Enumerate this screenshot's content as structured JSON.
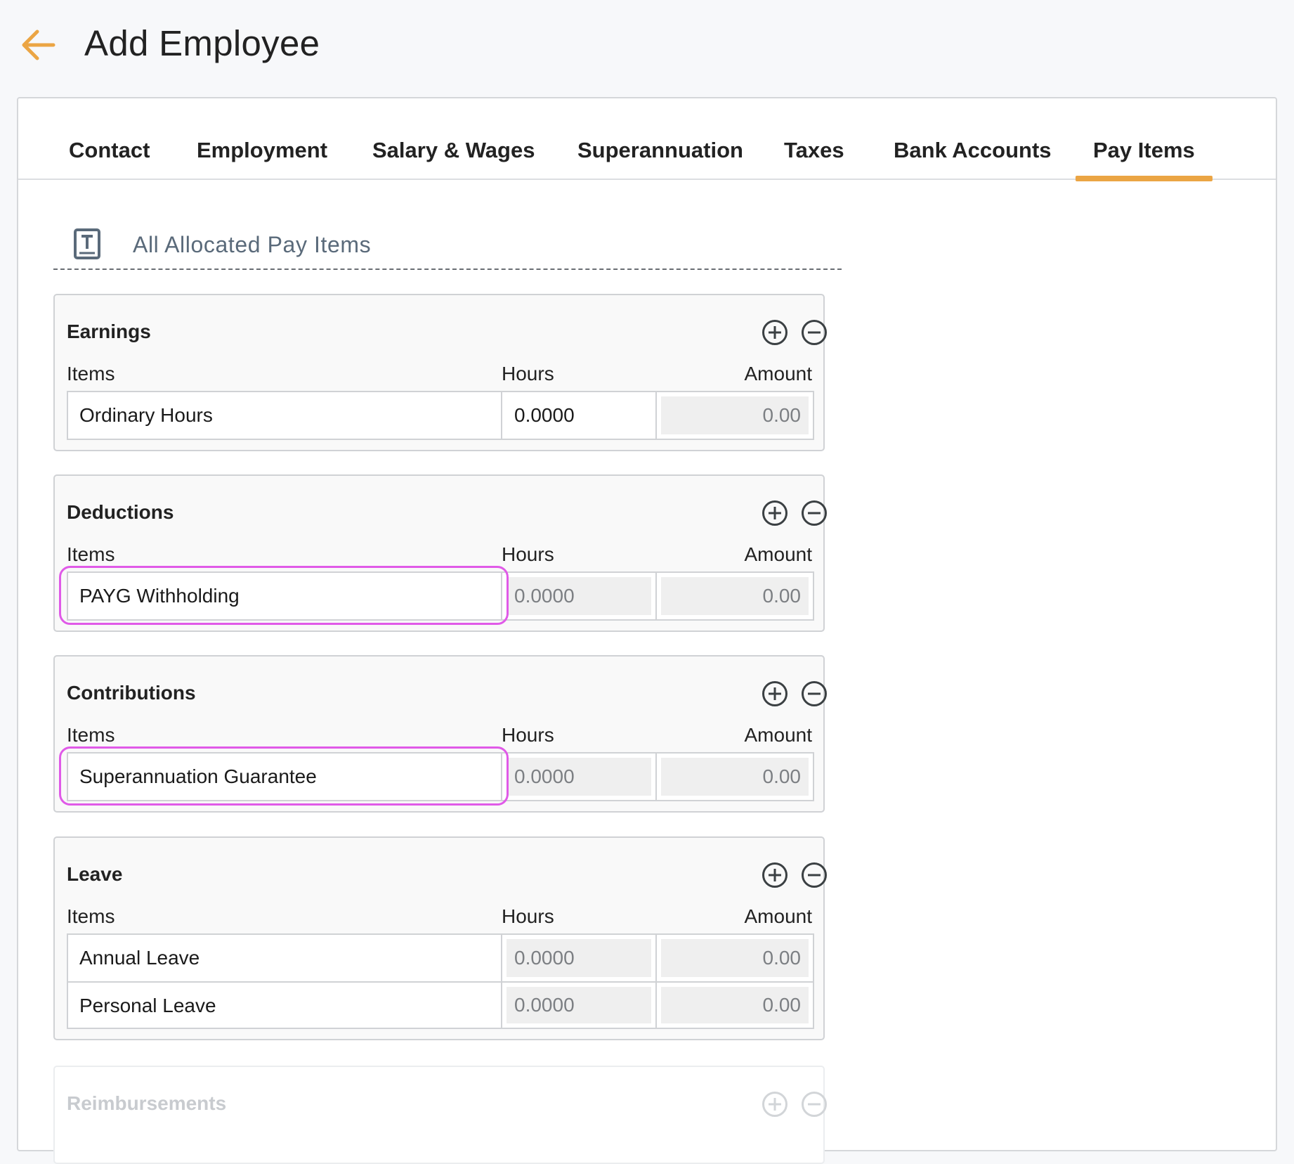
{
  "header": {
    "title": "Add Employee",
    "back_icon": "arrow-left-icon",
    "accent_color": "#eba544"
  },
  "tabs": [
    {
      "label": "Contact"
    },
    {
      "label": "Employment"
    },
    {
      "label": "Salary & Wages"
    },
    {
      "label": "Superannuation"
    },
    {
      "label": "Taxes"
    },
    {
      "label": "Bank Accounts"
    },
    {
      "label": "Pay Items",
      "active": true
    }
  ],
  "section": {
    "title": "All Allocated Pay Items",
    "icon": "text-box-icon"
  },
  "columns": {
    "items": "Items",
    "hours": "Hours",
    "amount": "Amount"
  },
  "panels": {
    "earnings": {
      "title": "Earnings",
      "rows": [
        {
          "item": "Ordinary Hours",
          "hours": "0.0000",
          "amount": "0.00",
          "hours_editable": true
        }
      ]
    },
    "deductions": {
      "title": "Deductions",
      "rows": [
        {
          "item": "PAYG Withholding",
          "hours": "0.0000",
          "amount": "0.00",
          "hours_editable": false
        }
      ]
    },
    "contributions": {
      "title": "Contributions",
      "rows": [
        {
          "item": "Superannuation Guarantee",
          "hours": "0.0000",
          "amount": "0.00",
          "hours_editable": false
        }
      ]
    },
    "leave": {
      "title": "Leave",
      "rows": [
        {
          "item": "Annual Leave",
          "hours": "0.0000",
          "amount": "0.00",
          "hours_editable": false
        },
        {
          "item": "Personal Leave",
          "hours": "0.0000",
          "amount": "0.00",
          "hours_editable": false
        }
      ]
    },
    "reimbursements": {
      "title": "Reimbursements"
    }
  },
  "highlight_color": "#e05ae8"
}
